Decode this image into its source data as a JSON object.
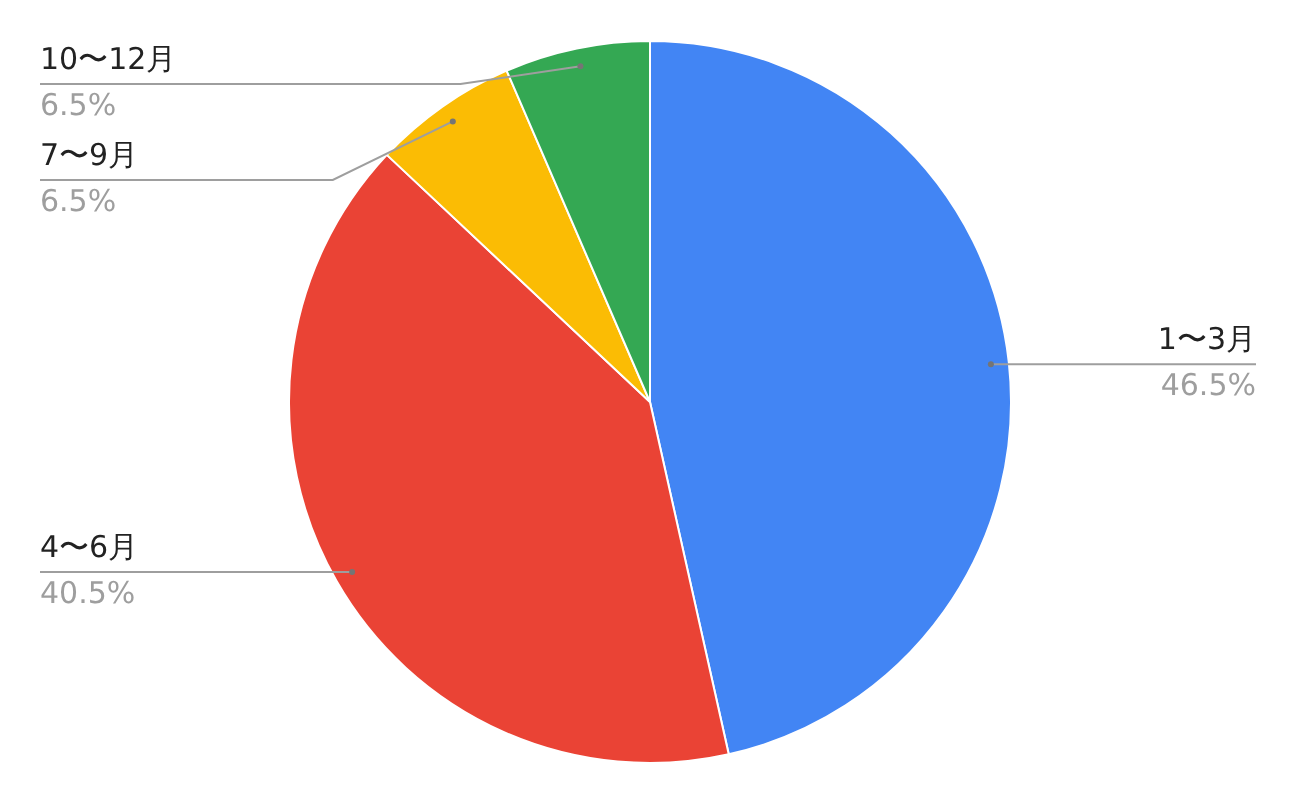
{
  "chart_data": {
    "type": "pie",
    "categories": [
      "1〜3月",
      "4〜6月",
      "7〜9月",
      "10〜12月"
    ],
    "values": [
      46.5,
      40.5,
      6.5,
      6.5
    ],
    "colors": [
      "#4285f4",
      "#ea4335",
      "#fbbc04",
      "#34a853"
    ],
    "value_labels": [
      "46.5%",
      "40.5%",
      "6.5%",
      "6.5%"
    ],
    "legend": false
  }
}
